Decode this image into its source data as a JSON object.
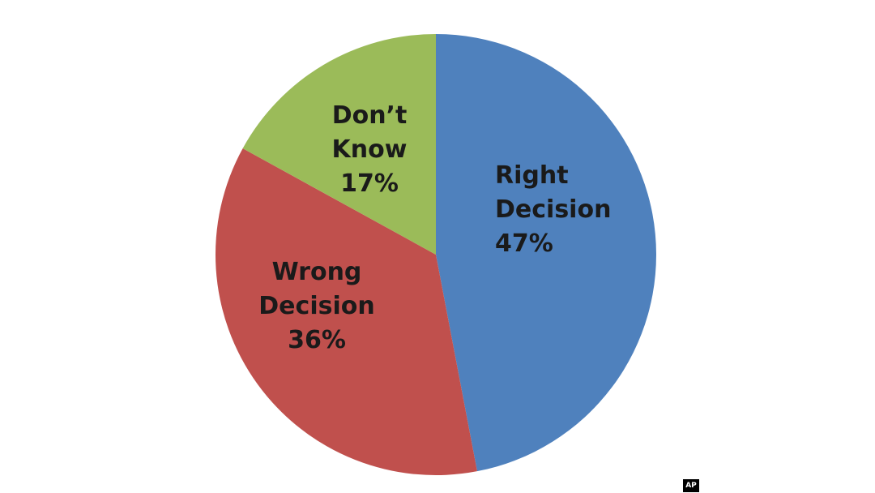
{
  "chart_data": {
    "type": "pie",
    "slices": [
      {
        "label_lines": [
          "Right",
          "Decision"
        ],
        "percent_label": "47%",
        "value": 47,
        "color": "#4f81bd"
      },
      {
        "label_lines": [
          "Wrong",
          "Decision"
        ],
        "percent_label": "36%",
        "value": 36,
        "color": "#c0504d"
      },
      {
        "label_lines": [
          "Don’t",
          "Know"
        ],
        "percent_label": "17%",
        "value": 17,
        "color": "#9bbb59"
      }
    ]
  },
  "credit": "AP"
}
